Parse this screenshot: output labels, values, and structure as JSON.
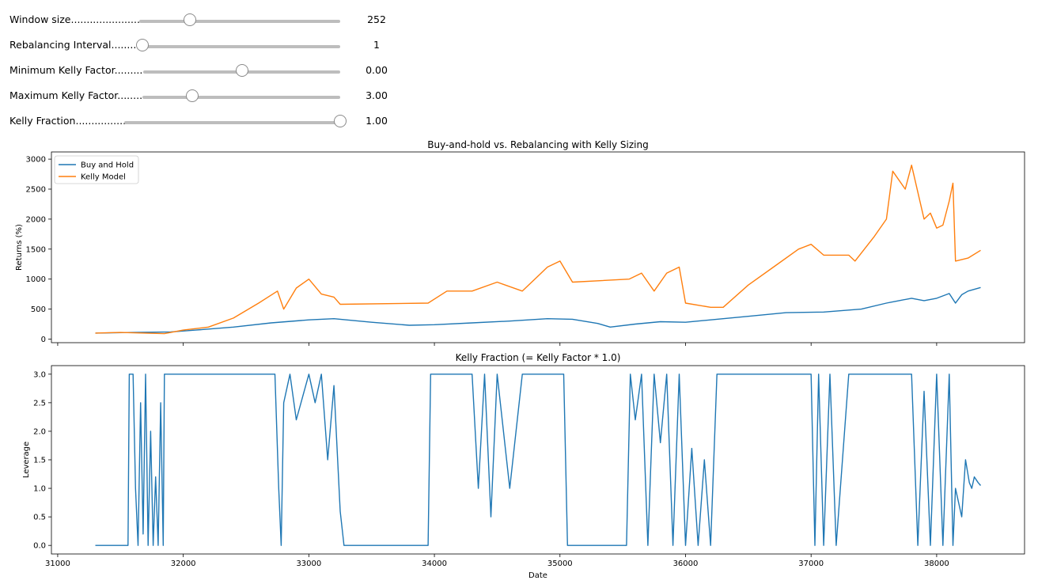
{
  "sliders": [
    {
      "label": "Window size.........................",
      "value": "252",
      "fraction": 0.25
    },
    {
      "label": "Rebalancing Interval..........",
      "value": "1",
      "fraction": 0.0
    },
    {
      "label": "Minimum Kelly Factor.........",
      "value": "0.00",
      "fraction": 0.5
    },
    {
      "label": "Maximum Kelly Factor........",
      "value": "3.00",
      "fraction": 0.25
    },
    {
      "label": "Kelly Fraction.................",
      "value": "1.00",
      "fraction": 1.0
    }
  ],
  "colors": {
    "buy_hold": "#1f77b4",
    "kelly": "#ff7f0e",
    "slider_track": "#bdbdbd"
  },
  "chart_data": [
    {
      "type": "line",
      "title": "Buy-and-hold vs. Rebalancing with Kelly Sizing",
      "xlabel": "",
      "ylabel": "Returns (%)",
      "xlim": [
        30950,
        38700
      ],
      "ylim": [
        -60,
        3120
      ],
      "yticks": [
        0,
        500,
        1000,
        1500,
        2000,
        2500,
        3000
      ],
      "xticks": [
        31000,
        32000,
        33000,
        34000,
        35000,
        36000,
        37000,
        38000
      ],
      "legend": "top-left",
      "series": [
        {
          "name": "Buy and Hold",
          "color": "#1f77b4",
          "x": [
            31300,
            31600,
            31900,
            32100,
            32400,
            32700,
            33000,
            33200,
            33500,
            33800,
            34000,
            34300,
            34600,
            34900,
            35100,
            35300,
            35400,
            35600,
            35800,
            36000,
            36200,
            36500,
            36800,
            37100,
            37400,
            37600,
            37800,
            37900,
            38000,
            38100,
            38150,
            38200,
            38250,
            38350
          ],
          "y": [
            100,
            110,
            120,
            150,
            200,
            270,
            320,
            340,
            280,
            230,
            240,
            270,
            300,
            340,
            330,
            260,
            200,
            250,
            290,
            280,
            320,
            380,
            440,
            450,
            500,
            600,
            680,
            640,
            680,
            760,
            600,
            740,
            800,
            860
          ]
        },
        {
          "name": "Kelly Model",
          "color": "#ff7f0e",
          "x": [
            31300,
            31500,
            31700,
            31850,
            32000,
            32200,
            32400,
            32600,
            32750,
            32800,
            32900,
            33000,
            33100,
            33200,
            33250,
            33950,
            34100,
            34300,
            34500,
            34700,
            34800,
            34900,
            35000,
            35100,
            35550,
            35650,
            35750,
            35850,
            35950,
            36000,
            36200,
            36300,
            36500,
            36700,
            36900,
            37000,
            37100,
            37300,
            37350,
            37500,
            37600,
            37650,
            37750,
            37800,
            37900,
            37950,
            38000,
            38050,
            38100,
            38130,
            38150,
            38250,
            38350
          ],
          "y": [
            100,
            110,
            100,
            90,
            150,
            200,
            350,
            600,
            800,
            500,
            850,
            1000,
            750,
            700,
            580,
            600,
            800,
            800,
            950,
            800,
            1000,
            1200,
            1300,
            950,
            1000,
            1100,
            800,
            1100,
            1200,
            600,
            530,
            530,
            900,
            1200,
            1500,
            1580,
            1400,
            1400,
            1300,
            1700,
            2000,
            2800,
            2500,
            2900,
            2000,
            2100,
            1850,
            1900,
            2300,
            2600,
            1300,
            1350,
            1480
          ]
        }
      ]
    },
    {
      "type": "line",
      "title": "Kelly Fraction (= Kelly Factor * 1.0)",
      "xlabel": "Date",
      "ylabel": "Leverage",
      "xlim": [
        30950,
        38700
      ],
      "ylim": [
        -0.15,
        3.15
      ],
      "yticks": [
        0.0,
        0.5,
        1.0,
        1.5,
        2.0,
        2.5,
        3.0
      ],
      "xticks": [
        31000,
        32000,
        33000,
        34000,
        35000,
        36000,
        37000,
        38000
      ],
      "series": [
        {
          "name": "",
          "color": "#1f77b4",
          "x": [
            31300,
            31560,
            31570,
            31600,
            31620,
            31640,
            31660,
            31680,
            31700,
            31720,
            31740,
            31760,
            31780,
            31800,
            31820,
            31840,
            31850,
            32730,
            32760,
            32780,
            32800,
            32850,
            32900,
            33000,
            33050,
            33100,
            33150,
            33200,
            33250,
            33280,
            33950,
            33970,
            34000,
            34300,
            34350,
            34400,
            34450,
            34500,
            34600,
            34700,
            35030,
            35060,
            35530,
            35560,
            35600,
            35650,
            35700,
            35750,
            35800,
            35850,
            35900,
            35950,
            36000,
            36050,
            36100,
            36150,
            36200,
            36250,
            37000,
            37030,
            37060,
            37100,
            37150,
            37200,
            37300,
            37800,
            37850,
            37900,
            37950,
            38000,
            38050,
            38100,
            38130,
            38150,
            38200,
            38230,
            38260,
            38280,
            38300,
            38330,
            38350
          ],
          "y": [
            0,
            0,
            3,
            3,
            1,
            0,
            2.5,
            0.2,
            3,
            0,
            2,
            0,
            1.2,
            0,
            2.5,
            0,
            3,
            3,
            1,
            0,
            2.5,
            3,
            2.2,
            3,
            2.5,
            3,
            1.5,
            2.8,
            0.6,
            0,
            0,
            3,
            3,
            3,
            1,
            3,
            0.5,
            3,
            1,
            3,
            3,
            0,
            0,
            3,
            2.2,
            3,
            0,
            3,
            1.8,
            3,
            0,
            3,
            0,
            1.7,
            0,
            1.5,
            0,
            3,
            3,
            0,
            3,
            0,
            3,
            0,
            3,
            3,
            0,
            2.7,
            0,
            3,
            0,
            3,
            0,
            1.0,
            0.5,
            1.5,
            1.1,
            1.0,
            1.2,
            1.1,
            1.05
          ]
        }
      ]
    }
  ]
}
